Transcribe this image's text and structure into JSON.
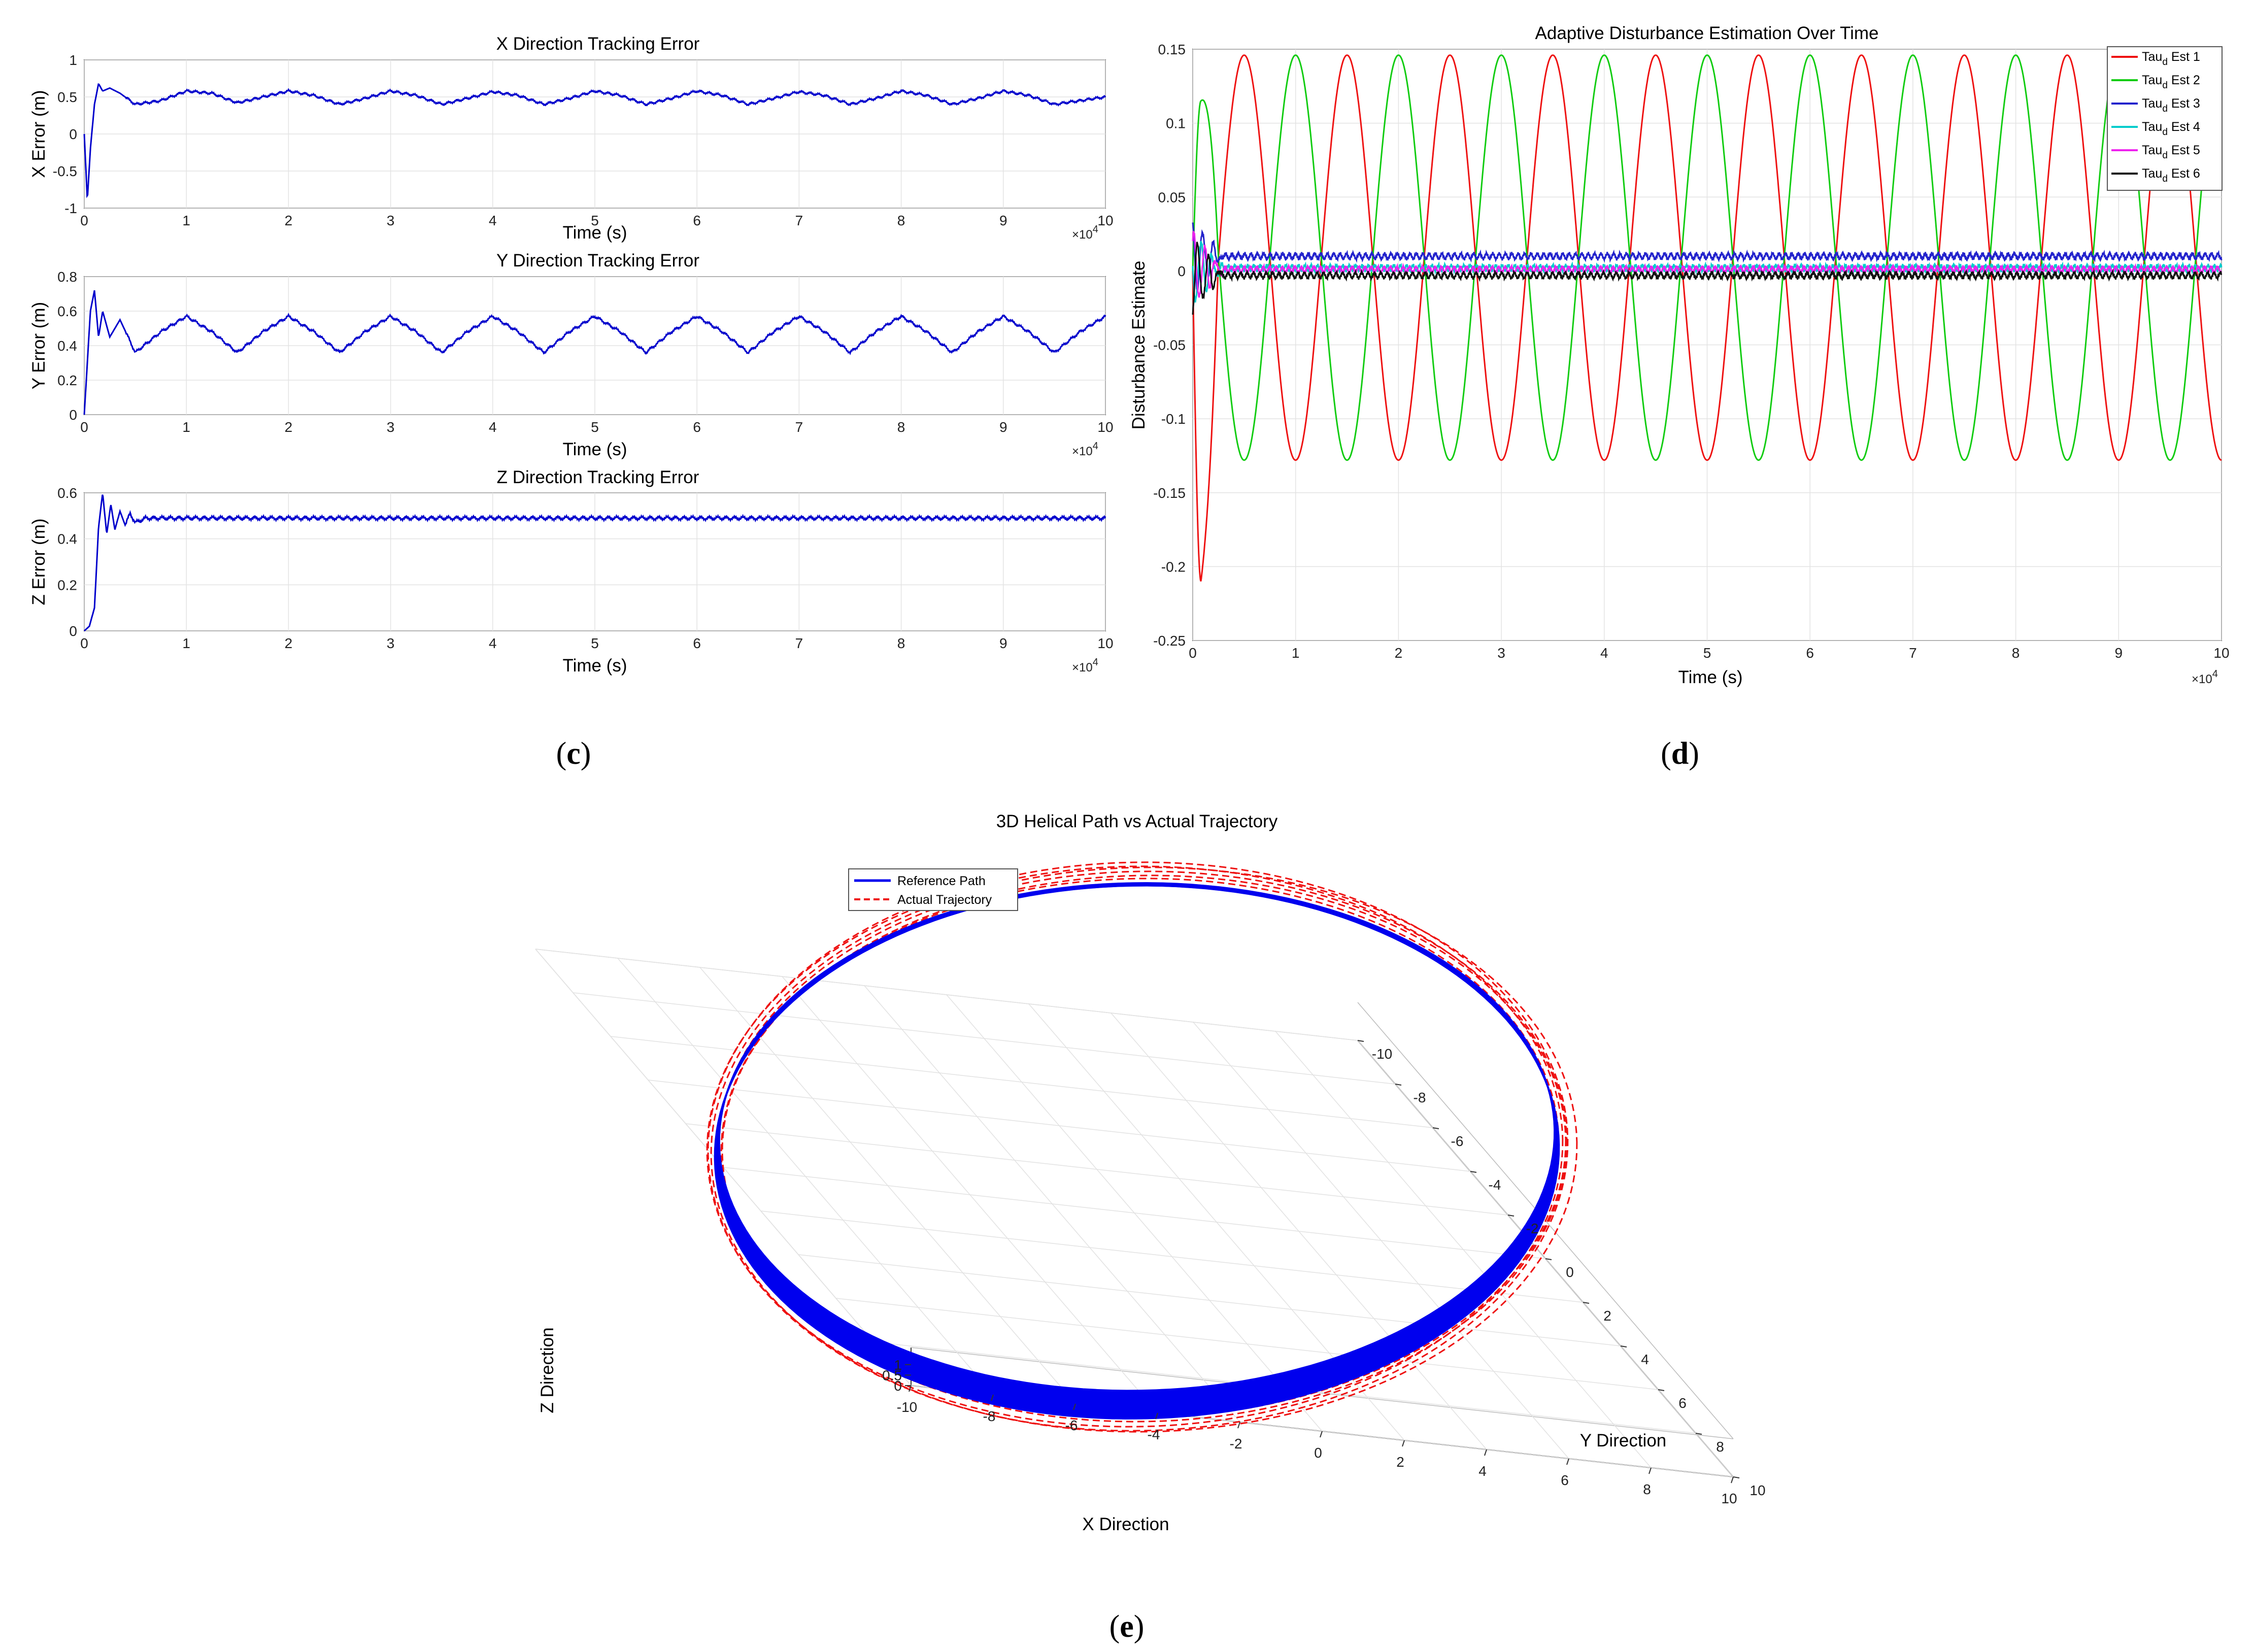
{
  "chart_data": [
    {
      "id": "x_error",
      "type": "line",
      "title": "X Direction Tracking Error",
      "xlabel": "Time (s)",
      "ylabel": "X Error (m)",
      "xlim": [
        0,
        10
      ],
      "ylim": [
        -1,
        1
      ],
      "x_multiplier": "×10^4",
      "xticks": [
        "0",
        "1",
        "2",
        "3",
        "4",
        "5",
        "6",
        "7",
        "8",
        "9",
        "10"
      ],
      "yticks": [
        "-1",
        "-0.5",
        "0",
        "0.5",
        "1"
      ],
      "grid": true,
      "color": "#0000cc",
      "series": [
        {
          "x": [
            0,
            0.03,
            0.06,
            0.1,
            0.14,
            0.18,
            0.25,
            0.35,
            0.5,
            0.75,
            1.0,
            1.25,
            1.5,
            1.75,
            2.0,
            2.25,
            2.5,
            2.75,
            3.0,
            3.25,
            3.5,
            3.75,
            4.0,
            4.25,
            4.5,
            4.75,
            5.0,
            5.25,
            5.5,
            5.75,
            6.0,
            6.25,
            6.5,
            6.75,
            7.0,
            7.25,
            7.5,
            7.75,
            8.0,
            8.25,
            8.5,
            8.75,
            9.0,
            9.25,
            9.5,
            9.75,
            10.0
          ],
          "y": [
            0.0,
            -0.9,
            -0.2,
            0.4,
            0.68,
            0.58,
            0.62,
            0.55,
            0.4,
            0.45,
            0.58,
            0.55,
            0.42,
            0.5,
            0.58,
            0.52,
            0.4,
            0.48,
            0.58,
            0.52,
            0.4,
            0.48,
            0.57,
            0.52,
            0.4,
            0.48,
            0.58,
            0.52,
            0.4,
            0.48,
            0.58,
            0.52,
            0.4,
            0.48,
            0.57,
            0.52,
            0.4,
            0.48,
            0.58,
            0.52,
            0.4,
            0.48,
            0.58,
            0.52,
            0.4,
            0.45,
            0.5
          ]
        }
      ]
    },
    {
      "id": "y_error",
      "type": "line",
      "title": "Y Direction Tracking Error",
      "xlabel": "Time (s)",
      "ylabel": "Y Error (m)",
      "xlim": [
        0,
        10
      ],
      "ylim": [
        0,
        0.8
      ],
      "x_multiplier": "×10^4",
      "xticks": [
        "0",
        "1",
        "2",
        "3",
        "4",
        "5",
        "6",
        "7",
        "8",
        "9",
        "10"
      ],
      "yticks": [
        "0",
        "0.2",
        "0.4",
        "0.6",
        "0.8"
      ],
      "grid": true,
      "color": "#0000cc",
      "series": [
        {
          "x": [
            0,
            0.03,
            0.06,
            0.1,
            0.14,
            0.18,
            0.25,
            0.35,
            0.5,
            0.75,
            1.0,
            1.25,
            1.5,
            1.75,
            2.0,
            2.25,
            2.5,
            2.75,
            3.0,
            3.25,
            3.5,
            3.75,
            4.0,
            4.25,
            4.5,
            4.75,
            5.0,
            5.25,
            5.5,
            5.75,
            6.0,
            6.25,
            6.5,
            6.75,
            7.0,
            7.25,
            7.5,
            7.75,
            8.0,
            8.25,
            8.5,
            8.75,
            9.0,
            9.25,
            9.5,
            9.75,
            10.0
          ],
          "y": [
            0.0,
            0.3,
            0.6,
            0.72,
            0.45,
            0.6,
            0.45,
            0.55,
            0.36,
            0.48,
            0.57,
            0.48,
            0.36,
            0.48,
            0.57,
            0.48,
            0.36,
            0.48,
            0.57,
            0.48,
            0.36,
            0.48,
            0.57,
            0.48,
            0.36,
            0.48,
            0.57,
            0.48,
            0.36,
            0.48,
            0.57,
            0.48,
            0.36,
            0.48,
            0.57,
            0.48,
            0.36,
            0.48,
            0.57,
            0.48,
            0.36,
            0.48,
            0.57,
            0.48,
            0.36,
            0.48,
            0.57
          ]
        }
      ]
    },
    {
      "id": "z_error",
      "type": "line",
      "title": "Z Direction Tracking Error",
      "xlabel": "Time (s)",
      "ylabel": "Z Error (m)",
      "xlim": [
        0,
        10
      ],
      "ylim": [
        0,
        0.6
      ],
      "x_multiplier": "×10^4",
      "xticks": [
        "0",
        "1",
        "2",
        "3",
        "4",
        "5",
        "6",
        "7",
        "8",
        "9",
        "10"
      ],
      "yticks": [
        "0",
        "0.2",
        "0.4",
        "0.6"
      ],
      "grid": true,
      "color": "#0000cc",
      "series": [
        {
          "x": [
            0,
            0.05,
            0.1,
            0.14,
            0.18,
            0.22,
            0.26,
            0.3,
            0.35,
            0.4,
            0.45,
            0.5,
            0.6,
            1.0,
            2.0,
            3.0,
            4.0,
            5.0,
            6.0,
            7.0,
            8.0,
            9.0,
            10.0
          ],
          "y": [
            0.0,
            0.02,
            0.1,
            0.45,
            0.6,
            0.42,
            0.55,
            0.44,
            0.52,
            0.46,
            0.51,
            0.47,
            0.49,
            0.49,
            0.49,
            0.49,
            0.49,
            0.49,
            0.49,
            0.49,
            0.49,
            0.49,
            0.49
          ]
        }
      ]
    },
    {
      "id": "disturbance",
      "type": "line",
      "title": "Adaptive Disturbance Estimation Over Time",
      "xlabel": "Time (s)",
      "ylabel": "Disturbance Estimate",
      "xlim": [
        0,
        10
      ],
      "ylim": [
        -0.25,
        0.15
      ],
      "x_multiplier": "×10^4",
      "xticks": [
        "0",
        "1",
        "2",
        "3",
        "4",
        "5",
        "6",
        "7",
        "8",
        "9",
        "10"
      ],
      "yticks": [
        "-0.25",
        "-0.2",
        "-0.15",
        "-0.1",
        "-0.05",
        "0",
        "0.05",
        "0.1",
        "0.15"
      ],
      "grid": true,
      "legend_position": "top-right",
      "series": [
        {
          "name": "Tau_d Est 1",
          "color": "#ee1111",
          "start": [
            0,
            0
          ],
          "dip": [
            0.05,
            -0.21
          ],
          "offset": 0.009,
          "amplitude": 0.137,
          "period": 1.0,
          "phase": 0.25
        },
        {
          "name": "Tau_d Est 2",
          "color": "#11cc11",
          "start": [
            0,
            0
          ],
          "peak": [
            0.1,
            0.115
          ],
          "offset": 0.009,
          "amplitude": 0.137,
          "period": 1.0,
          "phase": 0.0
        },
        {
          "name": "Tau_d Est 3",
          "color": "#2222cc",
          "level": 0.01
        },
        {
          "name": "Tau_d Est 4",
          "color": "#00cccc",
          "level": 0.002
        },
        {
          "name": "Tau_d Est 5",
          "color": "#ee22ee",
          "level": 0.001
        },
        {
          "name": "Tau_d Est 6",
          "color": "#111111",
          "level": -0.003
        }
      ],
      "legend_labels": [
        {
          "base": "Tau",
          "sub": "d",
          "rest": " Est 1"
        },
        {
          "base": "Tau",
          "sub": "d",
          "rest": " Est 2"
        },
        {
          "base": "Tau",
          "sub": "d",
          "rest": " Est 3"
        },
        {
          "base": "Tau",
          "sub": "d",
          "rest": " Est 4"
        },
        {
          "base": "Tau",
          "sub": "d",
          "rest": " Est 5"
        },
        {
          "base": "Tau",
          "sub": "d",
          "rest": " Est 6"
        }
      ]
    },
    {
      "id": "helix3d",
      "type": "line",
      "title": "3D Helical Path vs Actual Trajectory",
      "xlabel": "X Direction",
      "ylabel": "Y Direction",
      "zlabel": "Z Direction",
      "xticks": [
        "-10",
        "-8",
        "-6",
        "-4",
        "-2",
        "0",
        "2",
        "4",
        "6",
        "8",
        "10"
      ],
      "yticks": [
        "-10",
        "-8",
        "-6",
        "-4",
        "-2",
        "0",
        "2",
        "4",
        "6",
        "8",
        "10"
      ],
      "zticks": [
        "1",
        "0.5",
        "0"
      ],
      "xlim": [
        -10,
        10
      ],
      "ylim": [
        -10,
        10
      ],
      "zlim": [
        0,
        1
      ],
      "legend_position": "top-left",
      "series": [
        {
          "name": "Reference Path",
          "color": "#0000ee",
          "style": "solid",
          "radius": 10
        },
        {
          "name": "Actual Trajectory",
          "color": "#ee1111",
          "style": "dashed",
          "radius": 10
        }
      ]
    }
  ],
  "captions": {
    "c": "c",
    "d": "d",
    "e": "e"
  }
}
